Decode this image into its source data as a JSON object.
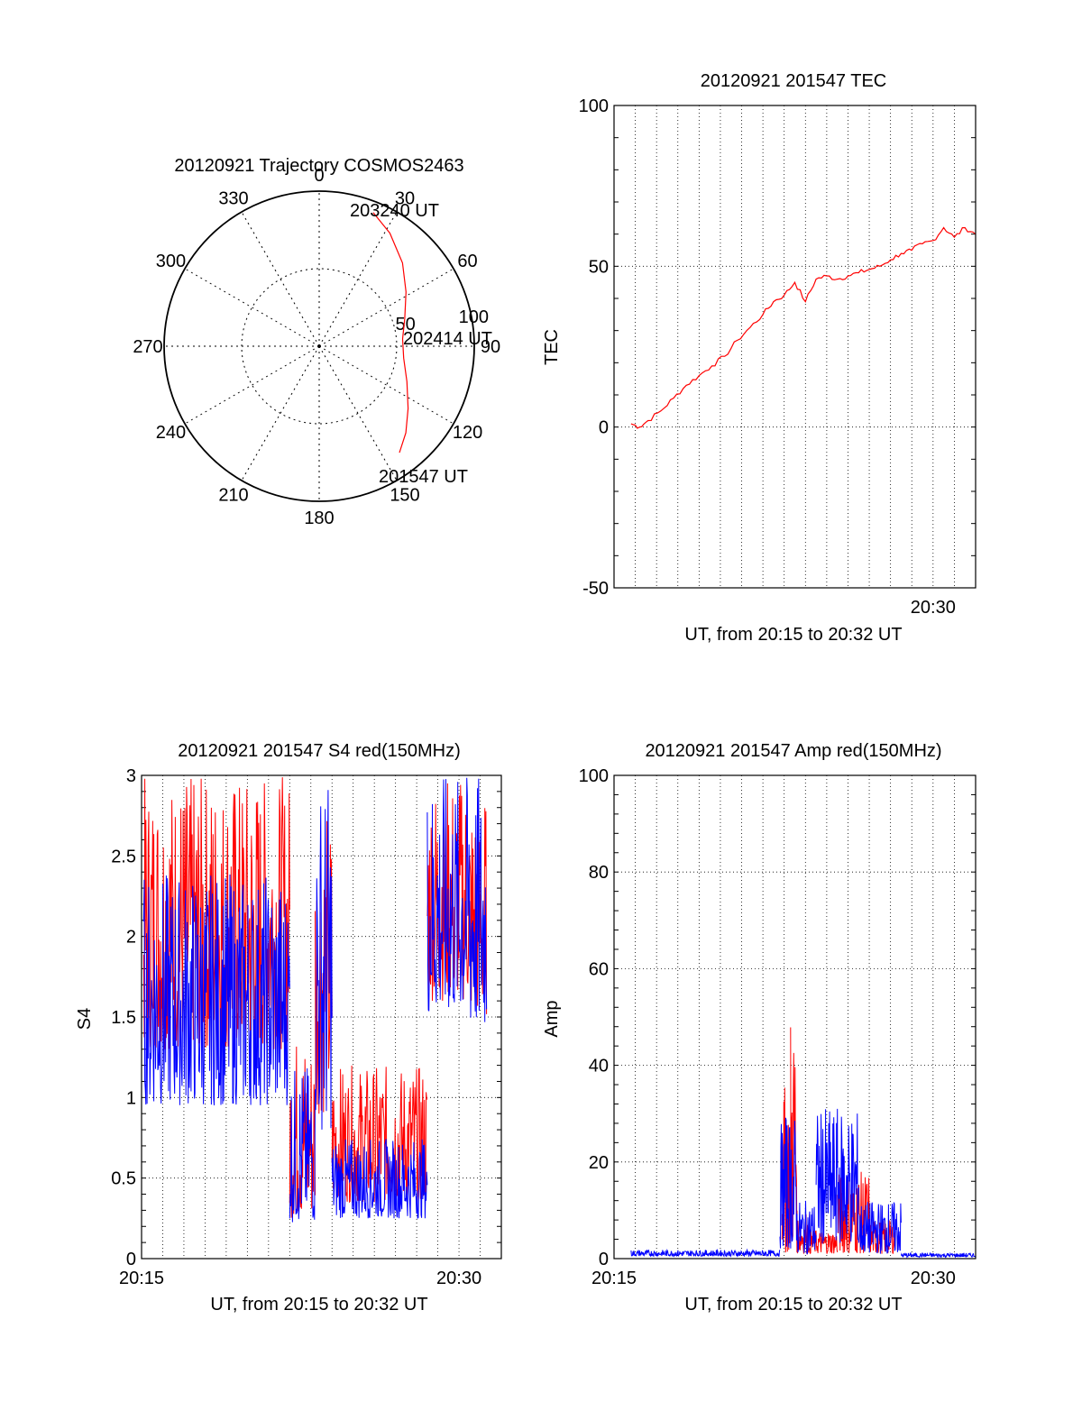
{
  "chart_data": [
    {
      "type": "polar",
      "title": "20120921 Trajectory COSMOS2463",
      "angle_labels": [
        "0",
        "30",
        "60",
        "90",
        "120",
        "150",
        "180",
        "210",
        "240",
        "270",
        "300",
        "330"
      ],
      "radial_labels": [
        "50",
        "100"
      ],
      "rlim": [
        0,
        100
      ],
      "grid": true,
      "trajectory_start_label": "201547 UT",
      "trajectory_mid_label": "202414 UT",
      "trajectory_end_label": "203240 UT",
      "trajectory": [
        {
          "az": 143,
          "r": 86
        },
        {
          "az": 135,
          "r": 79
        },
        {
          "az": 125,
          "r": 70
        },
        {
          "az": 112,
          "r": 61
        },
        {
          "az": 98,
          "r": 55
        },
        {
          "az": 85,
          "r": 54
        },
        {
          "az": 72,
          "r": 58
        },
        {
          "az": 58,
          "r": 66
        },
        {
          "az": 45,
          "r": 76
        },
        {
          "az": 32,
          "r": 86
        },
        {
          "az": 22,
          "r": 93
        }
      ],
      "trajectory_color": "#ff0000"
    },
    {
      "type": "line",
      "title": "20120921 201547 TEC",
      "xlabel": "UT, from 20:15 to 20:32 UT",
      "ylabel": "TEC",
      "xlim": [
        15.0,
        32.0
      ],
      "ylim": [
        -50,
        100
      ],
      "yticks": [
        -50,
        0,
        50,
        100
      ],
      "xtick_labels": [
        {
          "x": 30.0,
          "label": "20:30"
        }
      ],
      "grid": true,
      "series": [
        {
          "color": "#ff0000",
          "x": [
            15.8,
            16.2,
            16.6,
            17.2,
            17.8,
            18.4,
            19.0,
            19.6,
            20.2,
            20.8,
            21.4,
            22.0,
            22.5,
            23.0,
            23.5,
            24.0,
            24.5,
            25.0,
            25.5,
            26.0,
            26.5,
            27.0,
            27.5,
            28.0,
            28.5,
            29.0,
            29.5,
            30.0,
            30.5,
            31.0,
            31.5,
            32.0
          ],
          "y": [
            1,
            0,
            2,
            5,
            9,
            13,
            16,
            19,
            22,
            27,
            31,
            35,
            39,
            41,
            45,
            39,
            46,
            47,
            46,
            47,
            48,
            49,
            50,
            52,
            54,
            55,
            57,
            58,
            62,
            59,
            62,
            60
          ]
        }
      ]
    },
    {
      "type": "line",
      "title": "20120921 201547 S4 red(150MHz)",
      "xlabel": "UT, from 20:15 to 20:32 UT",
      "ylabel": "S4",
      "xlim": [
        15.0,
        32.0
      ],
      "ylim": [
        0,
        3
      ],
      "yticks": [
        0,
        0.5,
        1,
        1.5,
        2,
        2.5,
        3
      ],
      "ytick_labels": [
        "0",
        "0.5",
        "1",
        "1.5",
        "2",
        "2.5",
        "3"
      ],
      "xtick_labels": [
        {
          "x": 15.0,
          "label": "20:15"
        },
        {
          "x": 30.0,
          "label": "20:30"
        }
      ],
      "grid": true,
      "series": [
        {
          "color": "#ff0000",
          "segments": [
            {
              "x_start": 15.1,
              "x_end": 22.0,
              "low": 1.3,
              "high": 3.0
            },
            {
              "x_start": 22.0,
              "x_end": 23.2,
              "low": 0.25,
              "high": 1.4
            },
            {
              "x_start": 23.2,
              "x_end": 24.0,
              "low": 0.9,
              "high": 2.8
            },
            {
              "x_start": 24.0,
              "x_end": 28.5,
              "low": 0.35,
              "high": 1.2
            },
            {
              "x_start": 28.5,
              "x_end": 30.5,
              "low": 1.6,
              "high": 3.0
            },
            {
              "x_start": 30.5,
              "x_end": 31.3,
              "low": 1.5,
              "high": 2.9
            }
          ]
        },
        {
          "color": "#0000ff",
          "segments": [
            {
              "x_start": 15.1,
              "x_end": 22.0,
              "low": 0.95,
              "high": 2.4
            },
            {
              "x_start": 22.0,
              "x_end": 23.2,
              "low": 0.22,
              "high": 1.2
            },
            {
              "x_start": 23.2,
              "x_end": 24.0,
              "low": 0.8,
              "high": 3.0
            },
            {
              "x_start": 24.0,
              "x_end": 28.5,
              "low": 0.25,
              "high": 0.75
            },
            {
              "x_start": 28.5,
              "x_end": 30.5,
              "low": 1.5,
              "high": 3.0
            },
            {
              "x_start": 30.5,
              "x_end": 31.3,
              "low": 1.4,
              "high": 3.0
            }
          ]
        }
      ]
    },
    {
      "type": "line",
      "title": "20120921 201547 Amp red(150MHz)",
      "xlabel": "UT, from 20:15 to 20:32 UT",
      "ylabel": "Amp",
      "xlim": [
        15.0,
        32.0
      ],
      "ylim": [
        0,
        100
      ],
      "yticks": [
        0,
        20,
        40,
        60,
        80,
        100
      ],
      "xtick_labels": [
        {
          "x": 15.0,
          "label": "20:15"
        },
        {
          "x": 30.0,
          "label": "20:30"
        }
      ],
      "grid": true,
      "series": [
        {
          "color": "#ff0000",
          "segments": [
            {
              "x_start": 22.9,
              "x_end": 23.3,
              "low": 1,
              "high": 36
            },
            {
              "x_start": 23.3,
              "x_end": 23.6,
              "low": 1,
              "high": 53
            },
            {
              "x_start": 23.6,
              "x_end": 24.2,
              "low": 1,
              "high": 10
            },
            {
              "x_start": 24.2,
              "x_end": 25.5,
              "low": 1,
              "high": 6
            },
            {
              "x_start": 25.5,
              "x_end": 27.0,
              "low": 1,
              "high": 18
            },
            {
              "x_start": 27.0,
              "x_end": 28.2,
              "low": 1,
              "high": 8
            }
          ]
        },
        {
          "color": "#0000ff",
          "segments": [
            {
              "x_start": 15.8,
              "x_end": 22.8,
              "low": 0.5,
              "high": 1.8
            },
            {
              "x_start": 22.8,
              "x_end": 23.6,
              "low": 2,
              "high": 30
            },
            {
              "x_start": 23.6,
              "x_end": 24.5,
              "low": 1,
              "high": 12
            },
            {
              "x_start": 24.5,
              "x_end": 26.5,
              "low": 3,
              "high": 31
            },
            {
              "x_start": 26.5,
              "x_end": 28.5,
              "low": 1,
              "high": 12
            },
            {
              "x_start": 28.5,
              "x_end": 32.0,
              "low": 0.3,
              "high": 1.2
            }
          ]
        }
      ]
    }
  ]
}
